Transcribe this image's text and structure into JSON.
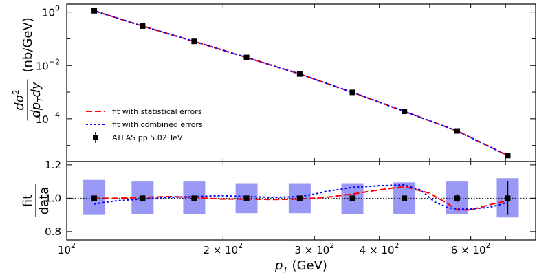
{
  "chart_data": [
    {
      "type": "scatter",
      "panel": "top",
      "yscale": "log",
      "xscale": "log",
      "ylim": [
        2.5e-06,
        2
      ],
      "ytick_values": [
        1,
        0.01,
        0.0001
      ],
      "ytick_mantissa": [
        "10",
        "10",
        "10"
      ],
      "ytick_exponent": [
        "0",
        "−2",
        "−4"
      ],
      "ylabel_parts": {
        "numerator": "dσ",
        "numerator_sup": "2",
        "denominator": "dp",
        "denominator_sub": "T",
        "denominator_tail": "dy",
        "units": "(nb/GeV)"
      },
      "x": [
        113,
        140,
        176,
        222,
        281,
        355,
        447,
        565,
        707
      ],
      "series": [
        {
          "name": "fit with statistical errors",
          "color": "#ff0000",
          "style": "dashed",
          "values": [
            1.12,
            0.3,
            0.08,
            0.02,
            0.0048,
            0.00098,
            0.00019,
            3.5e-05,
            4.2e-06
          ]
        },
        {
          "name": "fit with combined errors",
          "color": "#0000ff",
          "style": "dotted",
          "values": [
            1.12,
            0.3,
            0.08,
            0.02,
            0.0048,
            0.00098,
            0.00019,
            3.5e-05,
            4.2e-06
          ]
        },
        {
          "name": "ATLAS pp 5.02 TeV",
          "color": "#000000",
          "style": "markers",
          "values": [
            1.12,
            0.3,
            0.08,
            0.02,
            0.0048,
            0.00098,
            0.00019,
            3.5e-05,
            4.2e-06
          ]
        }
      ],
      "legend_position": "lower-left"
    },
    {
      "type": "scatter",
      "panel": "bottom",
      "xscale": "log",
      "xlim": [
        100,
        800
      ],
      "ylim": [
        0.75,
        1.22
      ],
      "ytick_values": [
        0.8,
        1.0,
        1.2
      ],
      "ytick_labels": [
        "0.8",
        "1.0",
        "1.2"
      ],
      "ylabel_num": "fit",
      "ylabel_den": "data",
      "xlabel_var": "p",
      "xlabel_sub": "T",
      "xlabel_units": "(GeV)",
      "xtick_values": [
        100,
        200,
        300,
        400,
        600
      ],
      "xtick_mantissa": [
        "",
        "2 × 10",
        "3 × 10",
        "4 × 10",
        "6 × 10"
      ],
      "xtick_base": [
        "10",
        "",
        "",
        "",
        ""
      ],
      "xtick_exponent": [
        "2",
        "2",
        "2",
        "2",
        "2"
      ],
      "x": [
        113,
        140,
        176,
        222,
        281,
        355,
        447,
        565,
        707
      ],
      "data_ratio": [
        1.0,
        1.0,
        1.0,
        1.0,
        1.0,
        1.0,
        1.0,
        1.0,
        1.0
      ],
      "data_err": [
        0.005,
        0.005,
        0.005,
        0.005,
        0.005,
        0.008,
        0.012,
        0.025,
        0.1
      ],
      "band_low": [
        0.9,
        0.905,
        0.905,
        0.91,
        0.91,
        0.905,
        0.905,
        0.905,
        0.885
      ],
      "band_high": [
        1.11,
        1.1,
        1.1,
        1.09,
        1.09,
        1.09,
        1.095,
        1.1,
        1.12
      ],
      "reference_line": 1.0,
      "fit_stat_curve": {
        "x": [
          113,
          125,
          140,
          158,
          176,
          198,
          222,
          250,
          281,
          315,
          355,
          400,
          447,
          500,
          540,
          565,
          600,
          650,
          707
        ],
        "y": [
          1.0,
          1.0,
          1.005,
          1.01,
          1.005,
          0.995,
          0.995,
          0.992,
          0.995,
          1.005,
          1.025,
          1.05,
          1.07,
          1.03,
          0.97,
          0.93,
          0.93,
          0.96,
          0.985
        ]
      },
      "fit_comb_curve": {
        "x": [
          113,
          118,
          125,
          140,
          158,
          176,
          198,
          222,
          250,
          281,
          300,
          315,
          355,
          400,
          447,
          480,
          510,
          540,
          565,
          600,
          650,
          680,
          707
        ],
        "y": [
          0.965,
          0.975,
          0.985,
          0.995,
          1.005,
          1.01,
          1.015,
          1.01,
          1.005,
          1.01,
          1.025,
          1.04,
          1.065,
          1.075,
          1.08,
          1.05,
          0.98,
          0.945,
          0.935,
          0.935,
          0.945,
          0.96,
          0.975
        ]
      }
    }
  ]
}
